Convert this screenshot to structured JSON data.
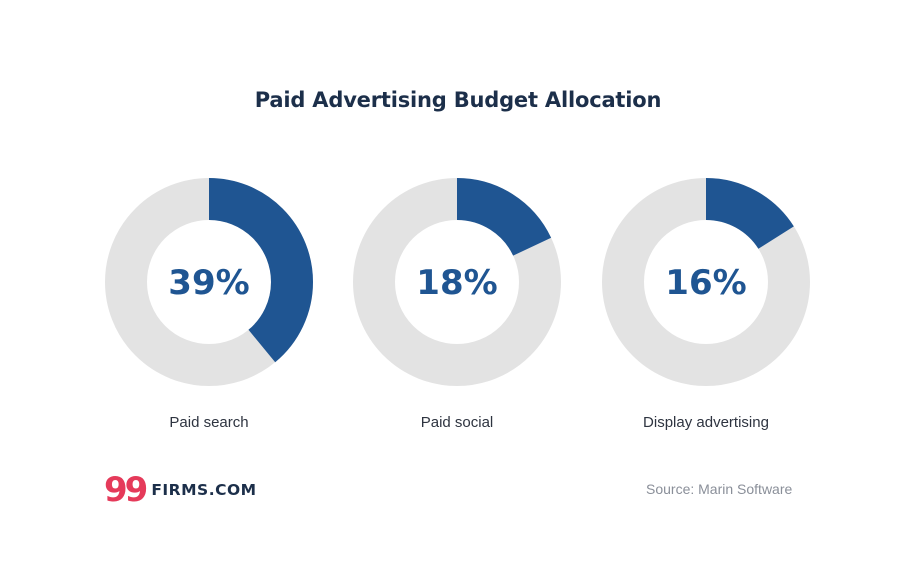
{
  "colors": {
    "accent": "#1f5592",
    "track": "#e3e3e3",
    "title": "#1c2f4a",
    "logo_mark": "#e53a5a",
    "source_text": "#8a8f99"
  },
  "chart_data": {
    "type": "pie",
    "title": "Paid Advertising Budget Allocation",
    "series": [
      {
        "name": "Paid search",
        "value": 39,
        "value_label": "39%"
      },
      {
        "name": "Paid social",
        "value": 18,
        "value_label": "18%"
      },
      {
        "name": "Display advertising",
        "value": 16,
        "value_label": "16%"
      }
    ],
    "style": "three separate donut charts, value in percent of 100"
  },
  "branding": {
    "logo_mark": "99",
    "logo_text": "FIRMS.COM"
  },
  "source": "Source: Marin Software"
}
